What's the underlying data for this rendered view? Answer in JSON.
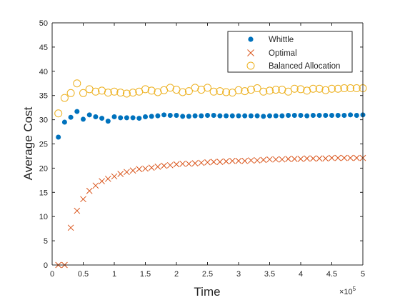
{
  "chart_data": {
    "type": "scatter",
    "xlabel": "Time",
    "ylabel": "Average Cost",
    "x_multiplier_label": "×10",
    "x_multiplier_exponent": "5",
    "xlim": [
      0,
      5
    ],
    "ylim": [
      0,
      50
    ],
    "x_ticks": [
      0,
      0.5,
      1,
      1.5,
      2,
      2.5,
      3,
      3.5,
      4,
      4.5,
      5
    ],
    "x_tick_labels": [
      "0",
      "0.5",
      "1",
      "1.5",
      "2",
      "2.5",
      "3",
      "3.5",
      "4",
      "4.5",
      "5"
    ],
    "y_ticks": [
      0,
      5,
      10,
      15,
      20,
      25,
      30,
      35,
      40,
      45,
      50
    ],
    "y_tick_labels": [
      "0",
      "5",
      "10",
      "15",
      "20",
      "25",
      "30",
      "35",
      "40",
      "45",
      "50"
    ],
    "grid": false,
    "legend_position": "top-right",
    "x": [
      0.1,
      0.2,
      0.3,
      0.4,
      0.5,
      0.6,
      0.7,
      0.8,
      0.9,
      1.0,
      1.1,
      1.2,
      1.3,
      1.4,
      1.5,
      1.6,
      1.7,
      1.8,
      1.9,
      2.0,
      2.1,
      2.2,
      2.3,
      2.4,
      2.5,
      2.6,
      2.7,
      2.8,
      2.9,
      3.0,
      3.1,
      3.2,
      3.3,
      3.4,
      3.5,
      3.6,
      3.7,
      3.8,
      3.9,
      4.0,
      4.1,
      4.2,
      4.3,
      4.4,
      4.5,
      4.6,
      4.7,
      4.8,
      4.9,
      5.0
    ],
    "series": [
      {
        "name": "Whittle",
        "marker": "filled-circle",
        "color": "#0072BD",
        "values": [
          26.4,
          29.5,
          30.5,
          31.7,
          30.1,
          31.0,
          30.6,
          30.3,
          29.7,
          30.6,
          30.4,
          30.4,
          30.4,
          30.3,
          30.6,
          30.7,
          30.8,
          31.0,
          30.9,
          30.9,
          30.7,
          30.7,
          30.8,
          30.8,
          30.9,
          30.9,
          30.8,
          30.8,
          30.8,
          30.8,
          30.8,
          30.8,
          30.8,
          30.7,
          30.8,
          30.8,
          30.8,
          30.9,
          30.9,
          30.9,
          30.8,
          30.9,
          30.9,
          30.9,
          30.9,
          30.9,
          30.9,
          31.0,
          30.9,
          31.0
        ]
      },
      {
        "name": "Optimal",
        "marker": "x",
        "color": "#D95319",
        "values": [
          0.0,
          0.0,
          7.7,
          11.2,
          13.6,
          15.3,
          16.4,
          17.3,
          17.8,
          18.3,
          18.8,
          19.2,
          19.5,
          19.8,
          19.9,
          20.1,
          20.3,
          20.5,
          20.6,
          20.8,
          20.9,
          20.9,
          21.0,
          21.1,
          21.2,
          21.3,
          21.3,
          21.4,
          21.5,
          21.5,
          21.5,
          21.6,
          21.6,
          21.7,
          21.8,
          21.8,
          21.8,
          21.9,
          21.9,
          21.9,
          22.0,
          22.0,
          22.0,
          22.0,
          22.1,
          22.1,
          22.1,
          22.1,
          22.1,
          22.1
        ]
      },
      {
        "name": "Balanced Allocation",
        "marker": "open-circle",
        "color": "#EDB120",
        "values": [
          31.3,
          34.5,
          35.5,
          37.5,
          35.5,
          36.3,
          35.8,
          36.0,
          35.6,
          35.8,
          35.6,
          35.4,
          35.6,
          35.8,
          36.3,
          36.0,
          35.7,
          36.1,
          36.6,
          36.2,
          35.7,
          35.9,
          36.6,
          36.2,
          36.6,
          35.8,
          35.9,
          35.7,
          35.6,
          36.1,
          35.9,
          36.2,
          36.5,
          35.8,
          36.0,
          36.2,
          36.2,
          35.8,
          36.4,
          36.3,
          36.0,
          36.4,
          36.4,
          36.1,
          36.4,
          36.4,
          36.5,
          36.5,
          36.5,
          36.5
        ]
      }
    ]
  }
}
